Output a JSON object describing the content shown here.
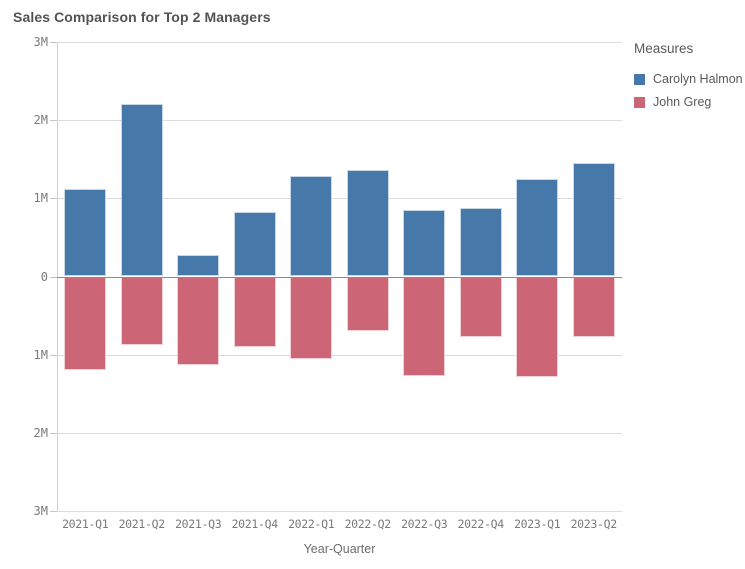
{
  "title": "Sales Comparison for Top 2 Managers",
  "legend": {
    "title": "Measures",
    "items": [
      {
        "label": "Carolyn Halmon",
        "color": "#4678a9"
      },
      {
        "label": "John Greg",
        "color": "#cc6677"
      }
    ]
  },
  "colors": {
    "bar_blue": "#4678a9",
    "bar_red": "#cc6677",
    "gridline": "#dcdcdc",
    "zero_line": "#8c8c8c",
    "axis_line": "#d0d0d0",
    "tick_text": "#7b7a78",
    "title_text": "#545352",
    "legend_text": "#595959"
  },
  "y_axis": {
    "tick_labels": [
      "3M",
      "2M",
      "1M",
      "0",
      "1M",
      "2M",
      "3M"
    ]
  },
  "x_axis": {
    "title": "Year-Quarter"
  },
  "chart_data": {
    "type": "bar",
    "subtype": "diverging-mirrored",
    "title": "Sales Comparison for Top 2 Managers",
    "xlabel": "Year-Quarter",
    "ylabel": "",
    "unit": "millions",
    "ylim_millions": [
      -3,
      3
    ],
    "grid": true,
    "legend_position": "right-top",
    "categories": [
      "2021-Q1",
      "2021-Q2",
      "2021-Q3",
      "2021-Q4",
      "2022-Q1",
      "2022-Q2",
      "2022-Q3",
      "2022-Q4",
      "2023-Q1",
      "2023-Q2"
    ],
    "series": [
      {
        "name": "Carolyn Halmon",
        "direction": "up",
        "color": "#4678a9",
        "values": [
          1.12,
          2.21,
          0.27,
          0.83,
          1.28,
          1.36,
          0.85,
          0.87,
          1.25,
          1.45
        ]
      },
      {
        "name": "John Greg",
        "direction": "down",
        "color": "#cc6677",
        "values": [
          1.19,
          0.87,
          1.13,
          0.9,
          1.05,
          0.7,
          1.27,
          0.77,
          1.28,
          0.78
        ]
      }
    ]
  }
}
